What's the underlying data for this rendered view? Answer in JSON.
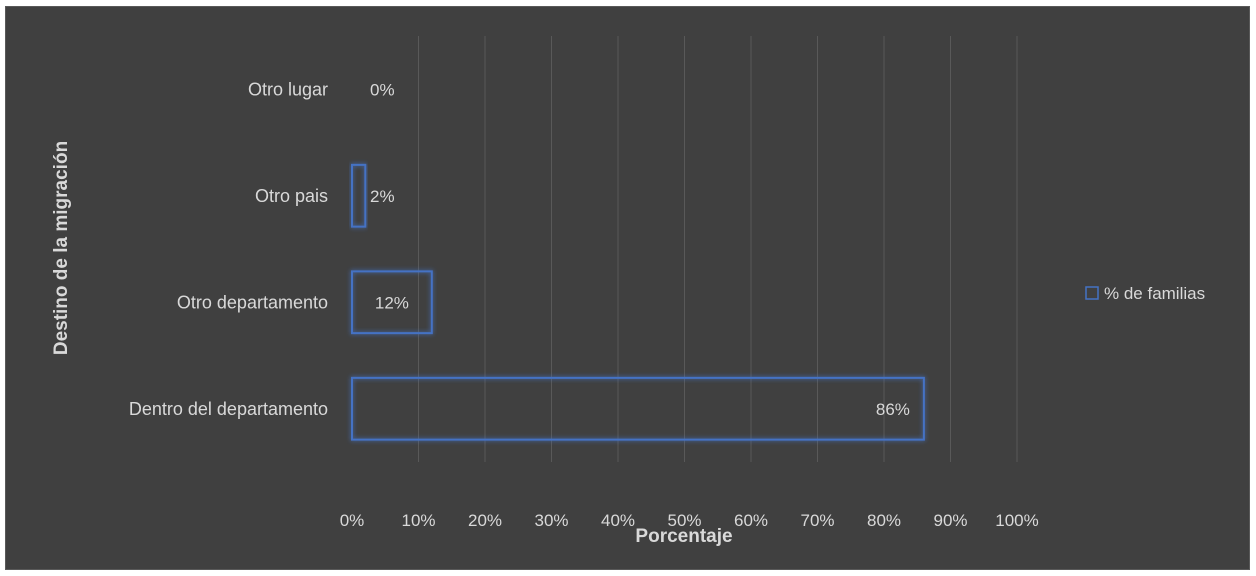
{
  "chart_data": {
    "type": "bar",
    "orientation": "horizontal",
    "categories": [
      "Dentro del departamento",
      "Otro departamento",
      "Otro pais",
      "Otro lugar"
    ],
    "series": [
      {
        "name": "% de familias",
        "values": [
          86,
          12,
          2,
          0
        ]
      }
    ],
    "data_labels": [
      "86%",
      "12%",
      "2%",
      "0%"
    ],
    "xlabel": "Porcentaje",
    "ylabel": "Destino de la migración",
    "xlim": [
      0,
      100
    ],
    "x_ticks": [
      0,
      10,
      20,
      30,
      40,
      50,
      60,
      70,
      80,
      90,
      100
    ],
    "x_tick_labels": [
      "0%",
      "10%",
      "20%",
      "30%",
      "40%",
      "50%",
      "60%",
      "70%",
      "80%",
      "90%",
      "100%"
    ],
    "grid": "vertical",
    "legend": "right",
    "colors": {
      "background": "#404040",
      "bar_outline": "#4472c4",
      "text": "#d9d9d9",
      "grid": "#595959"
    }
  }
}
